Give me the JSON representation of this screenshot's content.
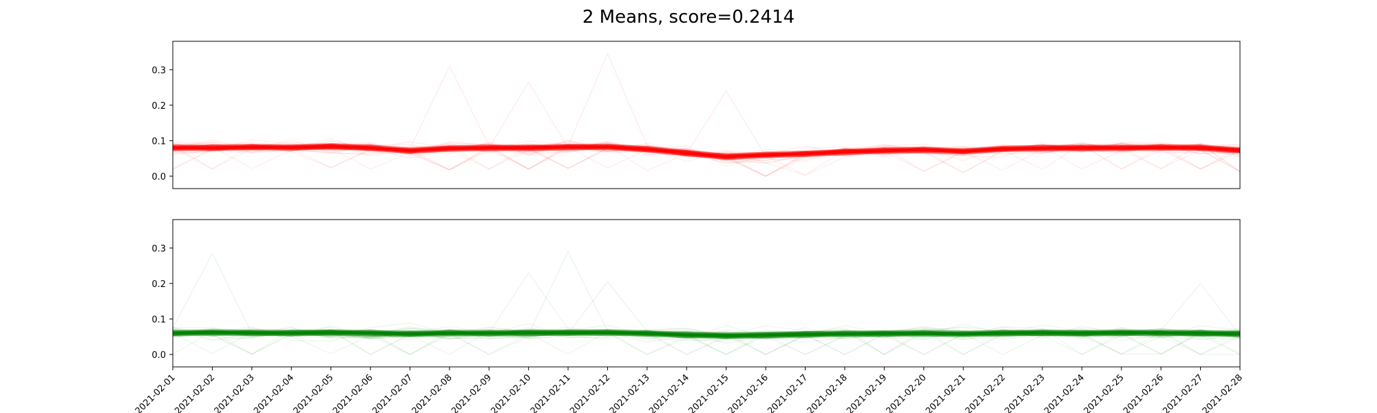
{
  "chart_data": [
    {
      "type": "line",
      "title": "2 Means, score=0.2414",
      "xlabel": "",
      "ylabel": "",
      "color": "#ff0000",
      "ylim": [
        -0.035,
        0.38
      ],
      "yticks": [
        "0.0",
        "0.1",
        "0.2",
        "0.3"
      ],
      "ytick_values": [
        0.0,
        0.1,
        0.2,
        0.3
      ],
      "x": [
        "2021-02-01",
        "2021-02-02",
        "2021-02-03",
        "2021-02-04",
        "2021-02-05",
        "2021-02-06",
        "2021-02-07",
        "2021-02-08",
        "2021-02-09",
        "2021-02-10",
        "2021-02-11",
        "2021-02-12",
        "2021-02-13",
        "2021-02-14",
        "2021-02-15",
        "2021-02-16",
        "2021-02-17",
        "2021-02-18",
        "2021-02-19",
        "2021-02-20",
        "2021-02-21",
        "2021-02-22",
        "2021-02-23",
        "2021-02-24",
        "2021-02-25",
        "2021-02-26",
        "2021-02-27",
        "2021-02-28"
      ],
      "center": [
        0.08,
        0.08,
        0.082,
        0.081,
        0.084,
        0.08,
        0.072,
        0.078,
        0.08,
        0.08,
        0.082,
        0.083,
        0.076,
        0.065,
        0.055,
        0.06,
        0.063,
        0.068,
        0.072,
        0.074,
        0.07,
        0.077,
        0.079,
        0.08,
        0.08,
        0.081,
        0.08,
        0.073
      ],
      "outliers": [
        {
          "x_index": 7,
          "y": 0.31
        },
        {
          "x_index": 11,
          "y": 0.345
        },
        {
          "x_index": 14,
          "y": 0.24
        },
        {
          "x_index": 9,
          "y": 0.265
        }
      ],
      "grid": false
    },
    {
      "type": "line",
      "title": "",
      "xlabel": "",
      "ylabel": "",
      "color": "#008000",
      "ylim": [
        -0.035,
        0.38
      ],
      "yticks": [
        "0.0",
        "0.1",
        "0.2",
        "0.3"
      ],
      "ytick_values": [
        0.0,
        0.1,
        0.2,
        0.3
      ],
      "x": [
        "2021-02-01",
        "2021-02-02",
        "2021-02-03",
        "2021-02-04",
        "2021-02-05",
        "2021-02-06",
        "2021-02-07",
        "2021-02-08",
        "2021-02-09",
        "2021-02-10",
        "2021-02-11",
        "2021-02-12",
        "2021-02-13",
        "2021-02-14",
        "2021-02-15",
        "2021-02-16",
        "2021-02-17",
        "2021-02-18",
        "2021-02-19",
        "2021-02-20",
        "2021-02-21",
        "2021-02-22",
        "2021-02-23",
        "2021-02-24",
        "2021-02-25",
        "2021-02-26",
        "2021-02-27",
        "2021-02-28"
      ],
      "center": [
        0.06,
        0.062,
        0.061,
        0.06,
        0.062,
        0.06,
        0.058,
        0.06,
        0.06,
        0.061,
        0.061,
        0.062,
        0.059,
        0.055,
        0.053,
        0.055,
        0.057,
        0.058,
        0.059,
        0.06,
        0.058,
        0.06,
        0.061,
        0.06,
        0.061,
        0.061,
        0.06,
        0.058
      ],
      "outliers": [
        {
          "x_index": 1,
          "y": 0.285
        },
        {
          "x_index": 10,
          "y": 0.29
        },
        {
          "x_index": 9,
          "y": 0.23
        },
        {
          "x_index": 11,
          "y": 0.205
        },
        {
          "x_index": 26,
          "y": 0.2
        }
      ],
      "grid": false
    }
  ]
}
